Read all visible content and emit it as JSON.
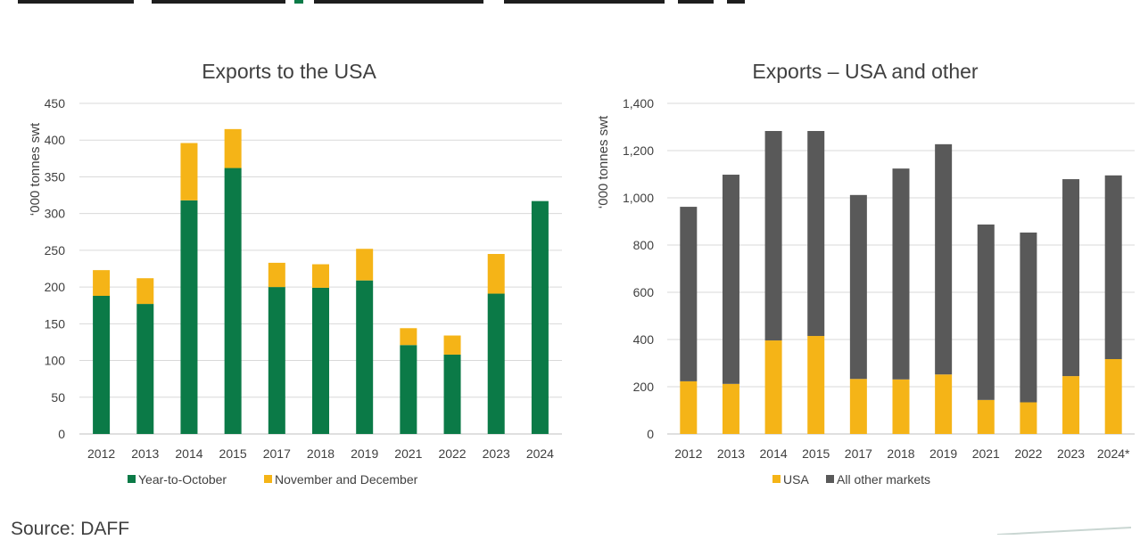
{
  "charts": {
    "left": {
      "title": "Exports to the USA",
      "ylabel": "‘000 tonnes swt"
    },
    "right": {
      "title": "Exports – USA and other",
      "ylabel": "‘000 tonnes swt"
    }
  },
  "source": "Source: DAFF",
  "chart_data": [
    {
      "type": "bar",
      "stacked": true,
      "title": "Exports to the USA",
      "xlabel": "",
      "ylabel": "‘000 tonnes swt",
      "categories": [
        "2012",
        "2013",
        "2014",
        "2015",
        "2017",
        "2018",
        "2019",
        "2021",
        "2022",
        "2023",
        "2024"
      ],
      "series": [
        {
          "name": "Year-to-October",
          "color": "#0b7a47",
          "values": [
            188,
            177,
            318,
            362,
            200,
            199,
            209,
            121,
            108,
            191,
            317
          ]
        },
        {
          "name": "November and December",
          "color": "#f5b417",
          "values": [
            35,
            35,
            78,
            53,
            33,
            32,
            43,
            23,
            26,
            54,
            0
          ]
        }
      ],
      "ylim": [
        0,
        450
      ],
      "yticks": [
        0,
        50,
        100,
        150,
        200,
        250,
        300,
        350,
        400,
        450
      ],
      "ytick_labels": [
        "0",
        "50",
        "100",
        "150",
        "200",
        "250",
        "300",
        "350",
        "400",
        "450"
      ],
      "grid": true,
      "legend": "bottom"
    },
    {
      "type": "bar",
      "stacked": true,
      "title": "Exports – USA and other",
      "xlabel": "",
      "ylabel": "‘000 tonnes swt",
      "categories": [
        "2012",
        "2013",
        "2014",
        "2015",
        "2017",
        "2018",
        "2019",
        "2021",
        "2022",
        "2023",
        "2024*"
      ],
      "series": [
        {
          "name": "USA",
          "color": "#f5b417",
          "values": [
            223,
            212,
            396,
            415,
            233,
            231,
            252,
            144,
            134,
            245,
            317
          ]
        },
        {
          "name": "All other markets",
          "color": "#595959",
          "values": [
            739,
            886,
            887,
            868,
            779,
            893,
            975,
            743,
            719,
            834,
            778
          ]
        }
      ],
      "ylim": [
        0,
        1400
      ],
      "yticks": [
        0,
        200,
        400,
        600,
        800,
        1000,
        1200,
        1400
      ],
      "ytick_labels": [
        "0",
        "200",
        "400",
        "600",
        "800",
        "1,000",
        "1,200",
        "1,400"
      ],
      "grid": true,
      "legend": "bottom"
    }
  ]
}
